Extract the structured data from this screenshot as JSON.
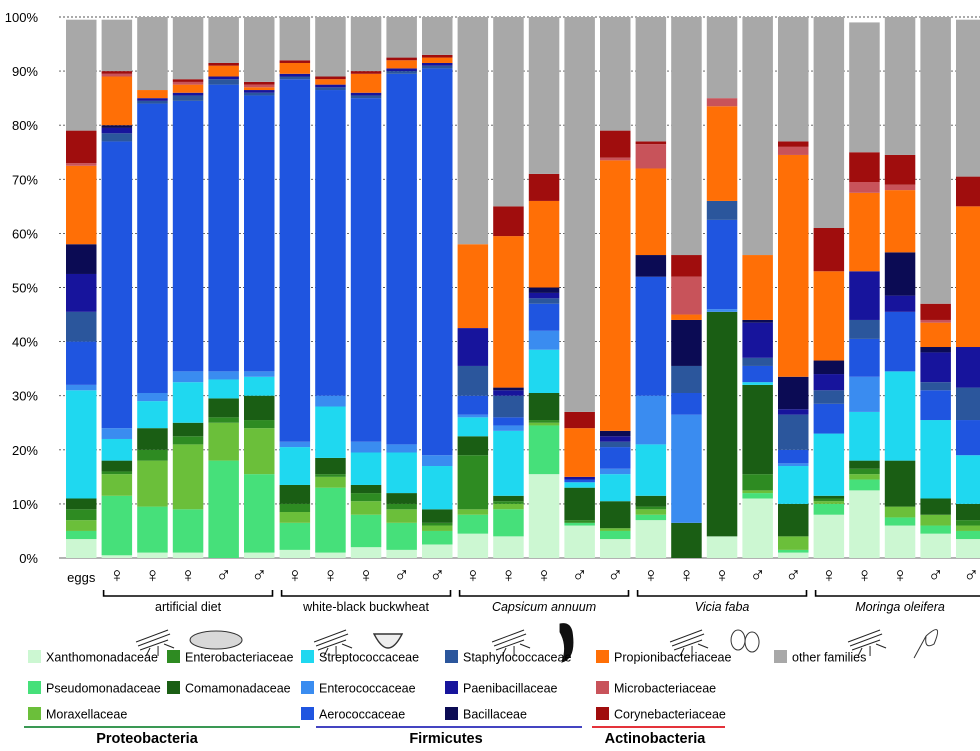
{
  "chart_data": {
    "type": "bar",
    "stacked": true,
    "ylim": [
      0,
      100
    ],
    "y_ticks": [
      "0%",
      "10%",
      "20%",
      "30%",
      "40%",
      "50%",
      "60%",
      "70%",
      "80%",
      "90%",
      "100%"
    ],
    "grid": true,
    "colors": {
      "Xanthomonadaceae": "#ccf7d2",
      "Pseudomonadaceae": "#46e07a",
      "Moraxellaceae": "#6bbf3a",
      "Enterobacteriaceae": "#2e8b22",
      "Comamonadaceae": "#1a5e14",
      "Streptococcaceae": "#1fd8f0",
      "Enterococcaceae": "#3a8cf0",
      "Aerococcaceae": "#1f55e0",
      "Staphylococcaceae": "#2b569c",
      "Paenibacillaceae": "#17149c",
      "Bacillaceae": "#0b0b54",
      "Propionibacteriaceae": "#ff6f06",
      "Microbacteriaceae": "#c8535a",
      "Corynebacteriaceae": "#a00d0d",
      "other families": "#a8a8a8"
    },
    "categories": [
      "eggs",
      "♀",
      "♀",
      "♀",
      "♂",
      "♂",
      "♀",
      "♀",
      "♀",
      "♂",
      "♂",
      "♀",
      "♀",
      "♀",
      "♂",
      "♂",
      "♀",
      "♀",
      "♀",
      "♂",
      "♂",
      "♀",
      "♀",
      "♀",
      "♂",
      "♂"
    ],
    "bars": [
      {
        "Xanthomonadaceae": 3.5,
        "Pseudomonadaceae": 1.5,
        "Moraxellaceae": 2,
        "Enterobacteriaceae": 2,
        "Comamonadaceae": 2,
        "Streptococcaceae": 20,
        "Enterococcaceae": 1,
        "Aerococcaceae": 8,
        "Staphylococcaceae": 5.5,
        "Paenibacillaceae": 7,
        "Bacillaceae": 5.5,
        "Propionibacteriaceae": 14.5,
        "Microbacteriaceae": 0.5,
        "Corynebacteriaceae": 6,
        "other families": 20.5
      },
      {
        "Xanthomonadaceae": 0.5,
        "Pseudomonadaceae": 11,
        "Moraxellaceae": 4,
        "Enterobacteriaceae": 0.5,
        "Comamonadaceae": 2,
        "Streptococcaceae": 4,
        "Enterococcaceae": 2,
        "Aerococcaceae": 53,
        "Staphylococcaceae": 1.5,
        "Paenibacillaceae": 1,
        "Bacillaceae": 0.5,
        "Propionibacteriaceae": 9,
        "Microbacteriaceae": 0.5,
        "Corynebacteriaceae": 0.5,
        "other families": 9.5
      },
      {
        "Xanthomonadaceae": 1,
        "Pseudomonadaceae": 8.5,
        "Moraxellaceae": 8.5,
        "Enterobacteriaceae": 2,
        "Comamonadaceae": 4,
        "Streptococcaceae": 5,
        "Enterococcaceae": 1.5,
        "Aerococcaceae": 53.5,
        "Staphylococcaceae": 0.5,
        "Paenibacillaceae": 0.5,
        "Bacillaceae": 0,
        "Propionibacteriaceae": 1.5,
        "Microbacteriaceae": 0,
        "Corynebacteriaceae": 0,
        "other families": 13.5
      },
      {
        "Xanthomonadaceae": 1,
        "Pseudomonadaceae": 8,
        "Moraxellaceae": 12,
        "Enterobacteriaceae": 1.5,
        "Comamonadaceae": 2.5,
        "Streptococcaceae": 7.5,
        "Enterococcaceae": 2,
        "Aerococcaceae": 50,
        "Staphylococcaceae": 1,
        "Paenibacillaceae": 0.5,
        "Bacillaceae": 0,
        "Propionibacteriaceae": 1.5,
        "Microbacteriaceae": 0.5,
        "Corynebacteriaceae": 0.5,
        "other families": 12
      },
      {
        "Xanthomonadaceae": 0,
        "Pseudomonadaceae": 18,
        "Moraxellaceae": 7,
        "Enterobacteriaceae": 1,
        "Comamonadaceae": 3.5,
        "Streptococcaceae": 3.5,
        "Enterococcaceae": 1.5,
        "Aerococcaceae": 53,
        "Staphylococcaceae": 1,
        "Paenibacillaceae": 0.5,
        "Bacillaceae": 0,
        "Propionibacteriaceae": 2,
        "Microbacteriaceae": 0,
        "Corynebacteriaceae": 0.5,
        "other families": 8.5
      },
      {
        "Xanthomonadaceae": 1,
        "Pseudomonadaceae": 14.5,
        "Moraxellaceae": 8.5,
        "Enterobacteriaceae": 1.5,
        "Comamonadaceae": 4.5,
        "Streptococcaceae": 3.5,
        "Enterococcaceae": 1,
        "Aerococcaceae": 51,
        "Staphylococcaceae": 0.5,
        "Paenibacillaceae": 0.5,
        "Bacillaceae": 0,
        "Propionibacteriaceae": 0.5,
        "Microbacteriaceae": 0.5,
        "Corynebacteriaceae": 0.5,
        "other families": 12.5
      },
      {
        "Xanthomonadaceae": 1.5,
        "Pseudomonadaceae": 5,
        "Moraxellaceae": 2,
        "Enterobacteriaceae": 1.5,
        "Comamonadaceae": 3.5,
        "Streptococcaceae": 7,
        "Enterococcaceae": 1,
        "Aerococcaceae": 67,
        "Staphylococcaceae": 0.5,
        "Paenibacillaceae": 0.5,
        "Bacillaceae": 0,
        "Propionibacteriaceae": 2,
        "Microbacteriaceae": 0,
        "Corynebacteriaceae": 0.5,
        "other families": 8
      },
      {
        "Xanthomonadaceae": 1,
        "Pseudomonadaceae": 12,
        "Moraxellaceae": 2,
        "Enterobacteriaceae": 0.5,
        "Comamonadaceae": 3,
        "Streptococcaceae": 9.5,
        "Enterococcaceae": 2,
        "Aerococcaceae": 56.5,
        "Staphylococcaceae": 0.5,
        "Paenibacillaceae": 0.5,
        "Bacillaceae": 0,
        "Propionibacteriaceae": 1,
        "Microbacteriaceae": 0,
        "Corynebacteriaceae": 0.5,
        "other families": 11.5
      },
      {
        "Xanthomonadaceae": 2,
        "Pseudomonadaceae": 6,
        "Moraxellaceae": 2.5,
        "Enterobacteriaceae": 1.5,
        "Comamonadaceae": 1.5,
        "Streptococcaceae": 6,
        "Enterococcaceae": 2,
        "Aerococcaceae": 63.5,
        "Staphylococcaceae": 0.5,
        "Paenibacillaceae": 0.5,
        "Bacillaceae": 0,
        "Propionibacteriaceae": 3.5,
        "Microbacteriaceae": 0,
        "Corynebacteriaceae": 0.5,
        "other families": 10
      },
      {
        "Xanthomonadaceae": 1.5,
        "Pseudomonadaceae": 5,
        "Moraxellaceae": 2.5,
        "Enterobacteriaceae": 1,
        "Comamonadaceae": 2,
        "Streptococcaceae": 7.5,
        "Enterococcaceae": 1.5,
        "Aerococcaceae": 68.5,
        "Staphylococcaceae": 0.5,
        "Paenibacillaceae": 0.5,
        "Bacillaceae": 0,
        "Propionibacteriaceae": 1.5,
        "Microbacteriaceae": 0,
        "Corynebacteriaceae": 0.5,
        "other families": 7.5
      },
      {
        "Xanthomonadaceae": 2.5,
        "Pseudomonadaceae": 2.5,
        "Moraxellaceae": 1,
        "Enterobacteriaceae": 0.5,
        "Comamonadaceae": 2.5,
        "Streptococcaceae": 8,
        "Enterococcaceae": 2,
        "Aerococcaceae": 71.5,
        "Staphylococcaceae": 0.5,
        "Paenibacillaceae": 0.5,
        "Bacillaceae": 0,
        "Propionibacteriaceae": 1,
        "Microbacteriaceae": 0,
        "Corynebacteriaceae": 0.5,
        "other families": 7.5
      },
      {
        "Xanthomonadaceae": 4.5,
        "Pseudomonadaceae": 3.5,
        "Moraxellaceae": 1,
        "Enterobacteriaceae": 10,
        "Comamonadaceae": 3.5,
        "Streptococcaceae": 3.5,
        "Enterococcaceae": 0.5,
        "Aerococcaceae": 3.5,
        "Staphylococcaceae": 5.5,
        "Paenibacillaceae": 7,
        "Bacillaceae": 0,
        "Propionibacteriaceae": 15.5,
        "Microbacteriaceae": 0,
        "Corynebacteriaceae": 0,
        "other families": 42
      },
      {
        "Xanthomonadaceae": 4,
        "Pseudomonadaceae": 5,
        "Moraxellaceae": 1,
        "Enterobacteriaceae": 0.5,
        "Comamonadaceae": 1,
        "Streptococcaceae": 12,
        "Enterococcaceae": 1,
        "Aerococcaceae": 1.5,
        "Staphylococcaceae": 4,
        "Paenibacillaceae": 1,
        "Bacillaceae": 0.5,
        "Propionibacteriaceae": 28,
        "Microbacteriaceae": 0,
        "Corynebacteriaceae": 5.5,
        "other families": 35
      },
      {
        "Xanthomonadaceae": 15.5,
        "Pseudomonadaceae": 9,
        "Moraxellaceae": 0.5,
        "Enterobacteriaceae": 0.5,
        "Comamonadaceae": 5,
        "Streptococcaceae": 8,
        "Enterococcaceae": 3.5,
        "Aerococcaceae": 5,
        "Staphylococcaceae": 1,
        "Paenibacillaceae": 1,
        "Bacillaceae": 1,
        "Propionibacteriaceae": 16,
        "Microbacteriaceae": 0,
        "Corynebacteriaceae": 5,
        "other families": 29
      },
      {
        "Xanthomonadaceae": 6,
        "Pseudomonadaceae": 0.5,
        "Moraxellaceae": 0,
        "Enterobacteriaceae": 0.5,
        "Comamonadaceae": 6,
        "Streptococcaceae": 1,
        "Enterococcaceae": 0,
        "Aerococcaceae": 0.5,
        "Staphylococcaceae": 0,
        "Paenibacillaceae": 0.5,
        "Bacillaceae": 0,
        "Propionibacteriaceae": 9,
        "Microbacteriaceae": 0,
        "Corynebacteriaceae": 3,
        "other families": 73
      },
      {
        "Xanthomonadaceae": 3.5,
        "Pseudomonadaceae": 1.5,
        "Moraxellaceae": 0.5,
        "Enterobacteriaceae": 0,
        "Comamonadaceae": 5,
        "Streptococcaceae": 5,
        "Enterococcaceae": 1,
        "Aerococcaceae": 4,
        "Staphylococcaceae": 1,
        "Paenibacillaceae": 1,
        "Bacillaceae": 1,
        "Propionibacteriaceae": 50,
        "Microbacteriaceae": 0.5,
        "Corynebacteriaceae": 5,
        "other families": 21
      },
      {
        "Xanthomonadaceae": 7,
        "Pseudomonadaceae": 1,
        "Moraxellaceae": 1,
        "Enterobacteriaceae": 0.5,
        "Comamonadaceae": 2,
        "Streptococcaceae": 9.5,
        "Enterococcaceae": 9,
        "Aerococcaceae": 22,
        "Staphylococcaceae": 0,
        "Paenibacillaceae": 0,
        "Bacillaceae": 4,
        "Propionibacteriaceae": 16,
        "Microbacteriaceae": 4.5,
        "Corynebacteriaceae": 0.5,
        "other families": 23
      },
      {
        "Xanthomonadaceae": 0,
        "Pseudomonadaceae": 0,
        "Moraxellaceae": 0,
        "Enterobacteriaceae": 0,
        "Comamonadaceae": 6.5,
        "Streptococcaceae": 0,
        "Enterococcaceae": 20,
        "Aerococcaceae": 4,
        "Staphylococcaceae": 5,
        "Paenibacillaceae": 0,
        "Bacillaceae": 8.5,
        "Propionibacteriaceae": 1,
        "Microbacteriaceae": 7,
        "Corynebacteriaceae": 4,
        "other families": 44
      },
      {
        "Xanthomonadaceae": 4,
        "Pseudomonadaceae": 0,
        "Moraxellaceae": 0,
        "Enterobacteriaceae": 0,
        "Comamonadaceae": 41.5,
        "Streptococcaceae": 0,
        "Enterococcaceae": 0.5,
        "Aerococcaceae": 16.5,
        "Staphylococcaceae": 3.5,
        "Paenibacillaceae": 0,
        "Bacillaceae": 0,
        "Propionibacteriaceae": 17.5,
        "Microbacteriaceae": 1.5,
        "Corynebacteriaceae": 0,
        "other families": 15
      },
      {
        "Xanthomonadaceae": 11,
        "Pseudomonadaceae": 1,
        "Moraxellaceae": 0.5,
        "Enterobacteriaceae": 3,
        "Comamonadaceae": 16.5,
        "Streptococcaceae": 0.5,
        "Enterococcaceae": 0,
        "Aerococcaceae": 3,
        "Staphylococcaceae": 1.5,
        "Paenibacillaceae": 6.5,
        "Bacillaceae": 0.5,
        "Propionibacteriaceae": 12,
        "Microbacteriaceae": 0,
        "Corynebacteriaceae": 0,
        "other families": 44
      },
      {
        "Xanthomonadaceae": 1,
        "Pseudomonadaceae": 0.5,
        "Moraxellaceae": 2.5,
        "Enterobacteriaceae": 0,
        "Comamonadaceae": 6,
        "Streptococcaceae": 7,
        "Enterococcaceae": 0.5,
        "Aerococcaceae": 2.5,
        "Staphylococcaceae": 6.5,
        "Paenibacillaceae": 1,
        "Bacillaceae": 6,
        "Propionibacteriaceae": 41,
        "Microbacteriaceae": 1.5,
        "Corynebacteriaceae": 1,
        "other families": 23
      },
      {
        "Xanthomonadaceae": 8,
        "Pseudomonadaceae": 2,
        "Moraxellaceae": 0.5,
        "Enterobacteriaceae": 0.5,
        "Comamonadaceae": 0.5,
        "Streptococcaceae": 11.5,
        "Enterococcaceae": 0,
        "Aerococcaceae": 5.5,
        "Staphylococcaceae": 2.5,
        "Paenibacillaceae": 3,
        "Bacillaceae": 2.5,
        "Propionibacteriaceae": 16.5,
        "Microbacteriaceae": 0,
        "Corynebacteriaceae": 8,
        "other families": 39
      },
      {
        "Xanthomonadaceae": 12.5,
        "Pseudomonadaceae": 2,
        "Moraxellaceae": 1,
        "Enterobacteriaceae": 1,
        "Comamonadaceae": 1.5,
        "Streptococcaceae": 9,
        "Enterococcaceae": 6.5,
        "Aerococcaceae": 7,
        "Staphylococcaceae": 3.5,
        "Paenibacillaceae": 9,
        "Bacillaceae": 0,
        "Propionibacteriaceae": 14.5,
        "Microbacteriaceae": 2,
        "Corynebacteriaceae": 5.5,
        "other families": 24
      },
      {
        "Xanthomonadaceae": 6,
        "Pseudomonadaceae": 1.5,
        "Moraxellaceae": 2,
        "Enterobacteriaceae": 0,
        "Comamonadaceae": 8.5,
        "Streptococcaceae": 16.5,
        "Enterococcaceae": 0,
        "Aerococcaceae": 11,
        "Staphylococcaceae": 0,
        "Paenibacillaceae": 3,
        "Bacillaceae": 8,
        "Propionibacteriaceae": 11.5,
        "Microbacteriaceae": 1,
        "Corynebacteriaceae": 5.5,
        "other families": 25.5
      },
      {
        "Xanthomonadaceae": 4.5,
        "Pseudomonadaceae": 1.5,
        "Moraxellaceae": 2,
        "Enterobacteriaceae": 0,
        "Comamonadaceae": 3,
        "Streptococcaceae": 14.5,
        "Enterococcaceae": 0,
        "Aerococcaceae": 5.5,
        "Staphylococcaceae": 1.5,
        "Paenibacillaceae": 5.5,
        "Bacillaceae": 1,
        "Propionibacteriaceae": 4.5,
        "Microbacteriaceae": 0.5,
        "Corynebacteriaceae": 3,
        "other families": 53
      },
      {
        "Xanthomonadaceae": 3.5,
        "Pseudomonadaceae": 1.5,
        "Moraxellaceae": 1,
        "Enterobacteriaceae": 1,
        "Comamonadaceae": 3,
        "Streptococcaceae": 9,
        "Enterococcaceae": 0,
        "Aerococcaceae": 6.5,
        "Staphylococcaceae": 6,
        "Paenibacillaceae": 7.5,
        "Bacillaceae": 0,
        "Propionibacteriaceae": 26,
        "Microbacteriaceae": 0,
        "Corynebacteriaceae": 5.5,
        "other families": 29
      }
    ],
    "groups": [
      {
        "label": "artificial diet",
        "italic": false,
        "icons": [
          "fly",
          "dish"
        ]
      },
      {
        "label": "white-black buckwheat",
        "italic": false,
        "icons": [
          "fly",
          "bowl"
        ]
      },
      {
        "label": "Capsicum annuum",
        "italic": true,
        "icons": [
          "fly",
          "pepper"
        ]
      },
      {
        "label": "Vicia faba",
        "italic": true,
        "icons": [
          "fly",
          "beans"
        ]
      },
      {
        "label": "Moringa oleifera",
        "italic": true,
        "icons": [
          "fly",
          "seed"
        ]
      }
    ],
    "legend": [
      {
        "name": "Xanthomonadaceae",
        "phylum": "Proteobacteria"
      },
      {
        "name": "Pseudomonadaceae",
        "phylum": "Proteobacteria"
      },
      {
        "name": "Moraxellaceae",
        "phylum": "Proteobacteria"
      },
      {
        "name": "Enterobacteriaceae",
        "phylum": "Proteobacteria"
      },
      {
        "name": "Comamonadaceae",
        "phylum": "Proteobacteria"
      },
      {
        "name": "Streptococcaceae",
        "phylum": "Firmicutes"
      },
      {
        "name": "Enterococcaceae",
        "phylum": "Firmicutes"
      },
      {
        "name": "Aerococcaceae",
        "phylum": "Firmicutes"
      },
      {
        "name": "Staphylococcaceae",
        "phylum": "Firmicutes"
      },
      {
        "name": "Paenibacillaceae",
        "phylum": "Firmicutes"
      },
      {
        "name": "Bacillaceae",
        "phylum": "Firmicutes"
      },
      {
        "name": "Propionibacteriaceae",
        "phylum": "Actinobacteria"
      },
      {
        "name": "Microbacteriaceae",
        "phylum": "Actinobacteria"
      },
      {
        "name": "Corynebacteriaceae",
        "phylum": "Actinobacteria"
      },
      {
        "name": "other families",
        "phylum": ""
      }
    ],
    "phyla": [
      {
        "name": "Proteobacteria",
        "color": "#1e8a3c"
      },
      {
        "name": "Firmicutes",
        "color": "#2a2ab8"
      },
      {
        "name": "Actinobacteria",
        "color": "#e0141e"
      }
    ]
  }
}
